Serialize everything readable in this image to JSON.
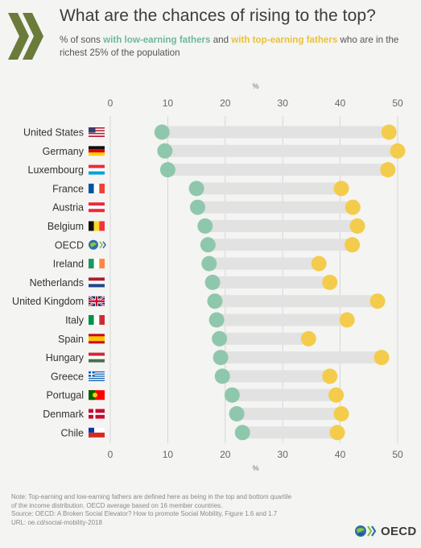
{
  "header": {
    "title": "What are the chances of rising to the top?",
    "subtitle_prefix": "% of sons ",
    "subtitle_low": "with low-earning fathers",
    "subtitle_mid": " and ",
    "subtitle_top": "with top-earning fathers",
    "subtitle_suffix": " who are in the richest 25% of the population"
  },
  "colors": {
    "low": "#8fc7ad",
    "top": "#f4cc4c",
    "bar": "#e2e2e2",
    "grid": "#cfcfcf"
  },
  "chart_data": {
    "type": "dumbbell",
    "unit_label": "%",
    "xlim": [
      0,
      50
    ],
    "x_ticks": [
      0,
      10,
      20,
      30,
      40,
      50
    ],
    "grid": true,
    "series": [
      {
        "name": "with low-earning fathers",
        "color": "#8fc7ad"
      },
      {
        "name": "with top-earning fathers",
        "color": "#f4cc4c"
      }
    ],
    "categories": [
      "United States",
      "Germany",
      "Luxembourg",
      "France",
      "Austria",
      "Belgium",
      "OECD",
      "Ireland",
      "Netherlands",
      "United Kingdom",
      "Italy",
      "Spain",
      "Hungary",
      "Greece",
      "Portugal",
      "Denmark",
      "Chile"
    ],
    "flags": [
      "us-flag-icon",
      "de-flag-icon",
      "lu-flag-icon",
      "fr-flag-icon",
      "at-flag-icon",
      "be-flag-icon",
      "oecd-globe-icon",
      "ie-flag-icon",
      "nl-flag-icon",
      "gb-flag-icon",
      "it-flag-icon",
      "es-flag-icon",
      "hu-flag-icon",
      "gr-flag-icon",
      "pt-flag-icon",
      "dk-flag-icon",
      "cl-flag-icon"
    ],
    "low_values": [
      9,
      9.5,
      10,
      15,
      15.2,
      16.5,
      17,
      17.2,
      17.8,
      18.2,
      18.5,
      19,
      19.2,
      19.5,
      21.2,
      22,
      23
    ],
    "top_values": [
      48.5,
      50,
      48.3,
      40.2,
      42.2,
      43,
      42.1,
      36.3,
      38.2,
      46.5,
      41.2,
      34.5,
      47.2,
      38.2,
      39.3,
      40.2,
      39.5
    ]
  },
  "footer": {
    "note_line1": "Note: Top-earning and low-earning fathers are defined here as being in the top and bottom quartile",
    "note_line2": "of the income distribution. OECD average based on 16 member countries.",
    "source": "Source: OECD: A Broken Social Elevator? How to promote Social Mobility, Figure 1.6 and 1.7",
    "url": "URL: oe.cd/social-mobility-2018",
    "brand": "OECD"
  }
}
